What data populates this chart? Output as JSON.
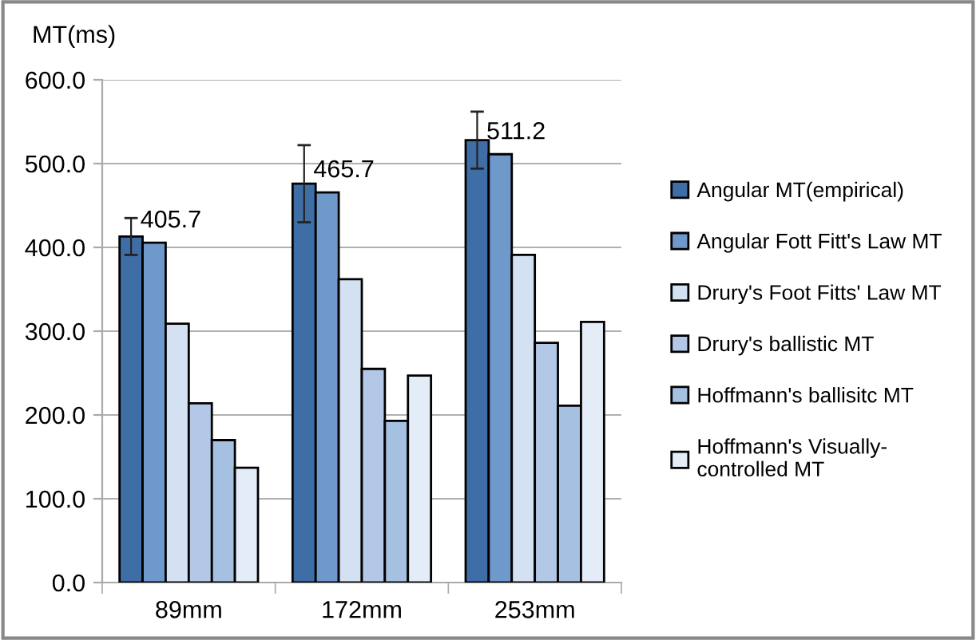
{
  "chart_data": {
    "type": "bar",
    "ylabel": "MT(ms)",
    "categories": [
      "89mm",
      "172mm",
      "253mm"
    ],
    "series": [
      {
        "name": "Angular MT(empirical)",
        "color": "#3f6ea6",
        "values": [
          413,
          476,
          528
        ],
        "errors": [
          22,
          46,
          34
        ]
      },
      {
        "name": "Angular Fott Fitt's Law MT",
        "color": "#6f98cb",
        "values": [
          405.7,
          465.7,
          511.2
        ],
        "value_labels": [
          "405.7",
          "465.7",
          "511.2"
        ]
      },
      {
        "name": "Drury's Foot Fitts' Law MT",
        "color": "#d4e1f2",
        "values": [
          309,
          362,
          391
        ]
      },
      {
        "name": "Drury's ballistic MT",
        "color": "#b3c8e6",
        "values": [
          214,
          255,
          286
        ]
      },
      {
        "name": "Hoffmann's ballisitc MT",
        "color": "#a6c0e2",
        "values": [
          170,
          193,
          211
        ]
      },
      {
        "name": "Hoffmann's Visually-\ncontrolled MT",
        "color": "#e4ecf7",
        "values": [
          137,
          247,
          311
        ]
      }
    ],
    "ylim": [
      0,
      600
    ],
    "yticks": [
      {
        "value": 0,
        "label": "0.0"
      },
      {
        "value": 100,
        "label": "100.0"
      },
      {
        "value": 200,
        "label": "200.0"
      },
      {
        "value": 300,
        "label": "300.0"
      },
      {
        "value": 400,
        "label": "400.0"
      },
      {
        "value": 500,
        "label": "500.0"
      },
      {
        "value": 600,
        "label": "600.0"
      }
    ],
    "grid": "y",
    "legend": "right"
  }
}
